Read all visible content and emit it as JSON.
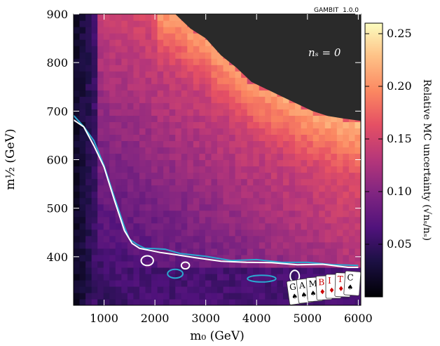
{
  "chart_data": {
    "type": "heatmap",
    "title": "",
    "xlabel": "m₀ (GeV)",
    "ylabel": "m½ (GeV)",
    "xlim": [
      400,
      6050
    ],
    "ylim": [
      300,
      900
    ],
    "xticks": [
      1000,
      2000,
      3000,
      4000,
      5000,
      6000
    ],
    "yticks": [
      400,
      500,
      600,
      700,
      800,
      900
    ],
    "colorbar": {
      "label": "Relative MC uncertainty (√nₛ/nₛ)",
      "range": [
        0,
        0.26
      ],
      "ticks": [
        0.05,
        0.1,
        0.15,
        0.2,
        0.25
      ],
      "tick_labels": [
        "0.05",
        "0.10",
        "0.15",
        "0.20",
        "0.25"
      ],
      "colormap": "magma"
    },
    "excluded_region": {
      "label": "nₛ = 0",
      "color": "#2a2a2a",
      "boundary": [
        [
          2100,
          900
        ],
        [
          2400,
          900
        ],
        [
          2700,
          870
        ],
        [
          3000,
          850
        ],
        [
          3300,
          815
        ],
        [
          3600,
          790
        ],
        [
          3900,
          760
        ],
        [
          4200,
          745
        ],
        [
          4500,
          730
        ],
        [
          4800,
          715
        ],
        [
          5100,
          700
        ],
        [
          5400,
          690
        ],
        [
          5700,
          685
        ],
        [
          6050,
          680
        ]
      ]
    },
    "contours": [
      {
        "color": "#2ba8d0",
        "points": [
          [
            400,
            690
          ],
          [
            600,
            670
          ],
          [
            800,
            640
          ],
          [
            1000,
            590
          ],
          [
            1200,
            525
          ],
          [
            1400,
            460
          ],
          [
            1500,
            435
          ],
          [
            1650,
            423
          ],
          [
            1800,
            420
          ],
          [
            2000,
            415
          ],
          [
            2200,
            415
          ],
          [
            2500,
            408
          ],
          [
            3000,
            400
          ],
          [
            3500,
            395
          ],
          [
            4000,
            392
          ],
          [
            4500,
            390
          ],
          [
            5000,
            388
          ],
          [
            5500,
            385
          ],
          [
            6000,
            380
          ]
        ]
      },
      {
        "color": "#ffffff",
        "points": [
          [
            400,
            680
          ],
          [
            600,
            665
          ],
          [
            800,
            630
          ],
          [
            1000,
            585
          ],
          [
            1200,
            520
          ],
          [
            1400,
            455
          ],
          [
            1550,
            430
          ],
          [
            1700,
            418
          ],
          [
            1900,
            413
          ],
          [
            2100,
            410
          ],
          [
            2400,
            403
          ],
          [
            2800,
            398
          ],
          [
            3300,
            393
          ],
          [
            3800,
            390
          ],
          [
            4300,
            388
          ],
          [
            4800,
            385
          ],
          [
            5300,
            383
          ],
          [
            5800,
            380
          ],
          [
            6000,
            378
          ]
        ]
      }
    ],
    "islands": [
      {
        "color": "#ffffff",
        "x": 1850,
        "y": 392,
        "rx": 120,
        "ry": 10
      },
      {
        "color": "#2ba8d0",
        "x": 2400,
        "y": 365,
        "rx": 150,
        "ry": 9
      },
      {
        "color": "#ffffff",
        "x": 2600,
        "y": 382,
        "rx": 80,
        "ry": 7
      },
      {
        "color": "#2ba8d0",
        "x": 4100,
        "y": 355,
        "rx": 280,
        "ry": 7
      },
      {
        "color": "#ffffff",
        "x": 4750,
        "y": 360,
        "rx": 90,
        "ry": 12
      }
    ]
  },
  "watermark": {
    "name": "GAMBIT",
    "version": "1.0.0"
  },
  "logo": {
    "letters": [
      "G",
      "A",
      "M",
      "B",
      "I",
      "T",
      "C"
    ],
    "letter_colors": [
      "#000000",
      "#000000",
      "#000000",
      "#cc0000",
      "#cc0000",
      "#cc0000",
      "#000000"
    ]
  }
}
